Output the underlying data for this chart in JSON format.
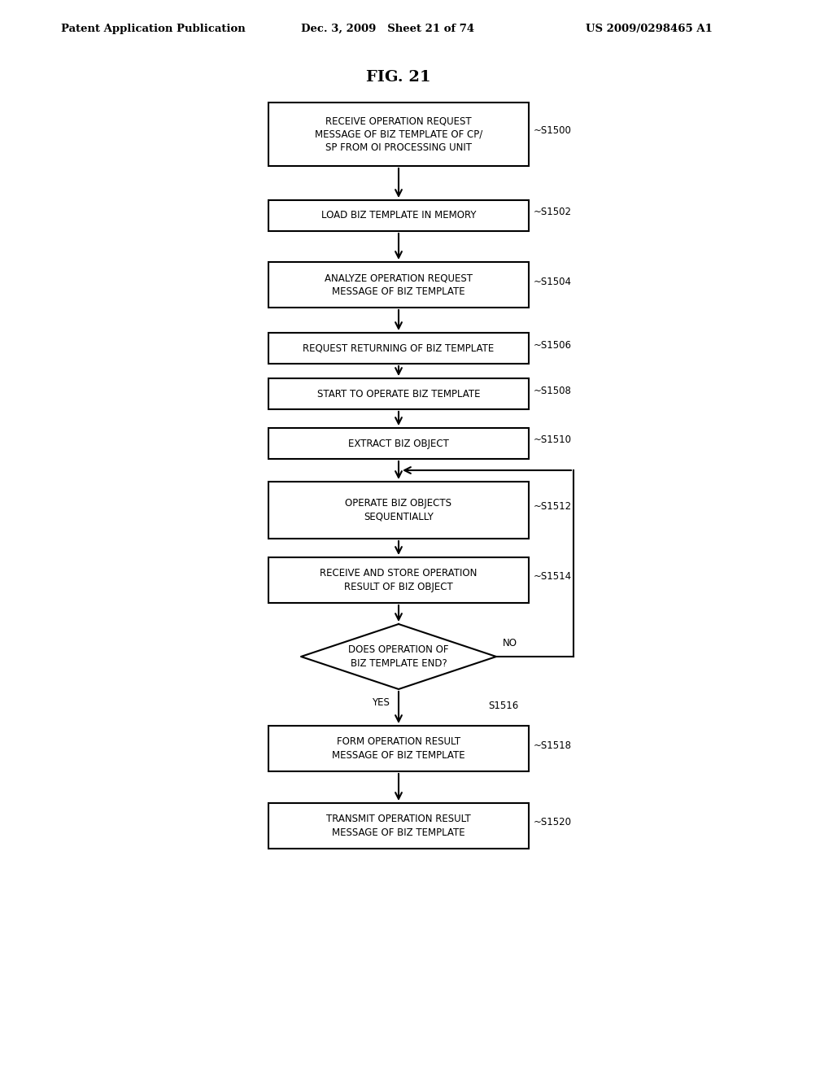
{
  "title": "FIG. 21",
  "header_left": "Patent Application Publication",
  "header_mid": "Dec. 3, 2009   Sheet 21 of 74",
  "header_right": "US 2009/0298465 A1",
  "background_color": "#ffffff",
  "boxes": [
    {
      "id": "S1500",
      "label": "RECEIVE OPERATION REQUEST\nMESSAGE OF BIZ TEMPLATE OF CP/\nSP FROM OI PROCESSING UNIT",
      "step": "~S1500",
      "type": "rect"
    },
    {
      "id": "S1502",
      "label": "LOAD BIZ TEMPLATE IN MEMORY",
      "step": "~S1502",
      "type": "rect"
    },
    {
      "id": "S1504",
      "label": "ANALYZE OPERATION REQUEST\nMESSAGE OF BIZ TEMPLATE",
      "step": "~S1504",
      "type": "rect"
    },
    {
      "id": "S1506",
      "label": "REQUEST RETURNING OF BIZ TEMPLATE",
      "step": "~S1506",
      "type": "rect"
    },
    {
      "id": "S1508",
      "label": "START TO OPERATE BIZ TEMPLATE",
      "step": "~S1508",
      "type": "rect"
    },
    {
      "id": "S1510",
      "label": "EXTRACT BIZ OBJECT",
      "step": "~S1510",
      "type": "rect"
    },
    {
      "id": "S1512",
      "label": "OPERATE BIZ OBJECTS\nSEQUENTIALLY",
      "step": "~S1512",
      "type": "rect"
    },
    {
      "id": "S1514",
      "label": "RECEIVE AND STORE OPERATION\nRESULT OF BIZ OBJECT",
      "step": "~S1514",
      "type": "rect"
    },
    {
      "id": "S1516",
      "label": "DOES OPERATION OF\nBIZ TEMPLATE END?",
      "step": "S1516",
      "type": "diamond"
    },
    {
      "id": "S1518",
      "label": "FORM OPERATION RESULT\nMESSAGE OF BIZ TEMPLATE",
      "step": "~S1518",
      "type": "rect"
    },
    {
      "id": "S1520",
      "label": "TRANSMIT OPERATION RESULT\nMESSAGE OF BIZ TEMPLATE",
      "step": "~S1520",
      "type": "rect"
    }
  ],
  "box_color": "#ffffff",
  "box_edge_color": "#000000",
  "text_color": "#000000",
  "arrow_color": "#000000",
  "font_size_box": 8.5,
  "font_size_step": 8.5,
  "font_size_header": 9.5,
  "font_size_title": 14
}
